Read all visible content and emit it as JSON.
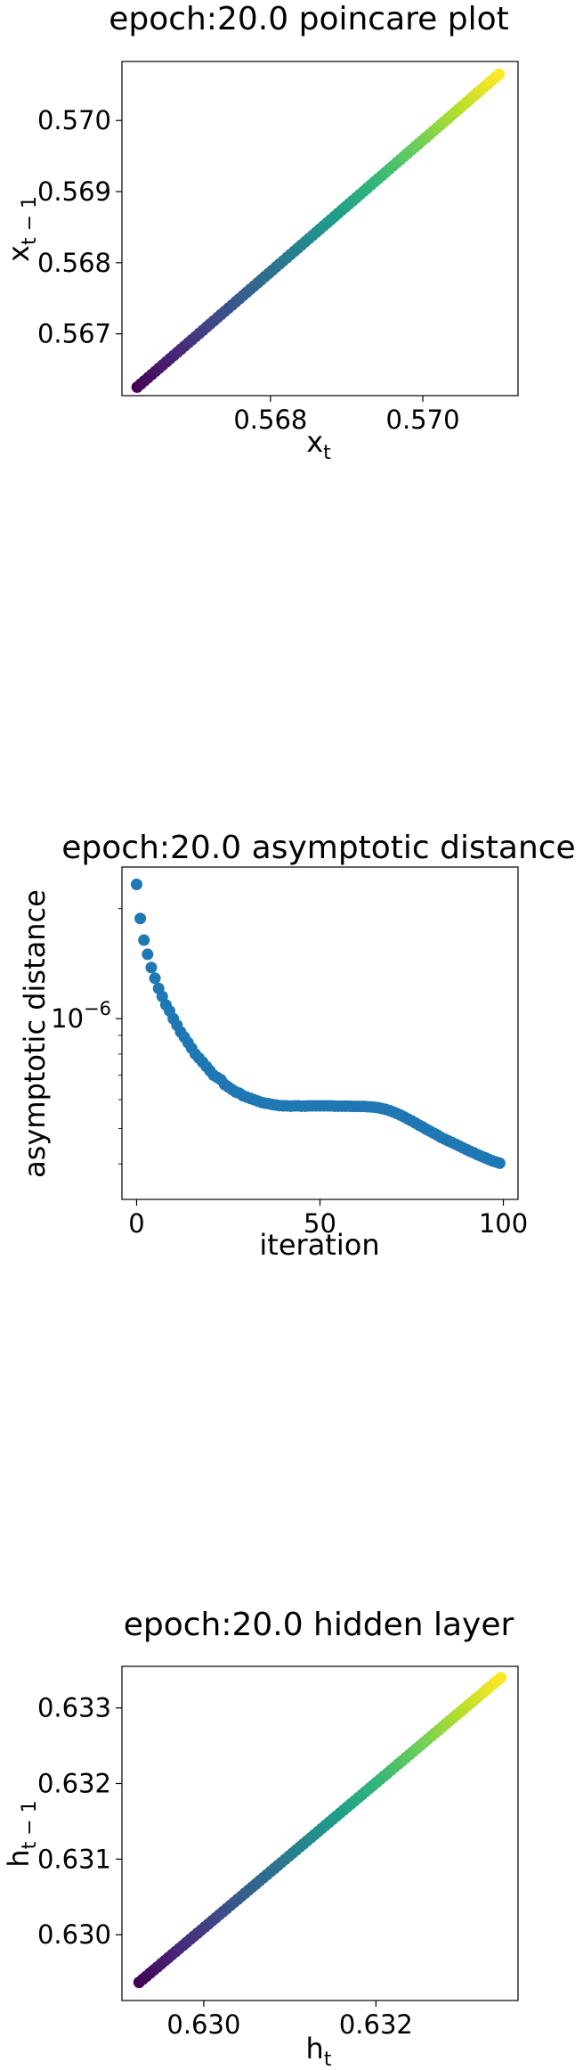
{
  "chart_data": [
    {
      "id": "poincare",
      "type": "scatter",
      "title": "epoch:20.0 poincare plot",
      "xlabel": "x",
      "xlabel_sub": "t",
      "ylabel": "x",
      "ylabel_sub": "t − 1",
      "xlim": [
        0.56605,
        0.57125
      ],
      "ylim": [
        0.56613,
        0.57083
      ],
      "xticks": [
        0.568,
        0.57
      ],
      "xtick_labels": [
        "0.568",
        "0.570"
      ],
      "yticks": [
        0.567,
        0.568,
        0.569,
        0.57
      ],
      "ytick_labels": [
        "0.567",
        "0.568",
        "0.569",
        "0.570"
      ],
      "colormap": "viridis",
      "grid": false,
      "series": [
        {
          "x_start": 0.56625,
          "x_end": 0.571,
          "y_start": 0.56625,
          "y_end": 0.57065,
          "n_points": 100
        }
      ]
    },
    {
      "id": "asymptotic",
      "type": "scatter",
      "title": "epoch:20.0 asymptotic distance",
      "xlabel": "iteration",
      "ylabel": "asymptotic distance",
      "xlim": [
        -4,
        104
      ],
      "yscale": "log",
      "ylim": [
        3.2e-07,
        2.6e-06
      ],
      "xticks": [
        0,
        50,
        100
      ],
      "xtick_labels": [
        "0",
        "50",
        "100"
      ],
      "ytick_major": 1e-06,
      "ytick_major_label_base": "10",
      "ytick_major_label_exp": "−6",
      "color": "#1f77b4",
      "grid": false,
      "series": [
        {
          "iteration": [
            0,
            1,
            2,
            3,
            4,
            5,
            6,
            7,
            8,
            9,
            10,
            11,
            12,
            13,
            14,
            15,
            16,
            17,
            18,
            19,
            20,
            21,
            22,
            23,
            24,
            25,
            26,
            27,
            28,
            29,
            30,
            31,
            32,
            33,
            34,
            35,
            36,
            37,
            38,
            39,
            40,
            41,
            42,
            43,
            44,
            45,
            46,
            47,
            48,
            49,
            50,
            51,
            52,
            53,
            54,
            55,
            56,
            57,
            58,
            59,
            60,
            61,
            62,
            63,
            64,
            65,
            66,
            67,
            68,
            69,
            70,
            71,
            72,
            73,
            74,
            75,
            76,
            77,
            78,
            79,
            80,
            81,
            82,
            83,
            84,
            85,
            86,
            87,
            88,
            89,
            90,
            91,
            92,
            93,
            94,
            95,
            96,
            97,
            98,
            99
          ],
          "distance": [
            2.33e-06,
            1.88e-06,
            1.64e-06,
            1.5e-06,
            1.38e-06,
            1.29e-06,
            1.21e-06,
            1.15e-06,
            1.09e-06,
            1.05e-06,
            1e-06,
            9.6e-07,
            9.2e-07,
            8.9e-07,
            8.6e-07,
            8.3e-07,
            8e-07,
            7.8e-07,
            7.6e-07,
            7.4e-07,
            7.2e-07,
            7e-07,
            6.9e-07,
            6.8e-07,
            6.6e-07,
            6.5e-07,
            6.4e-07,
            6.3e-07,
            6.25e-07,
            6.15e-07,
            6.1e-07,
            6.05e-07,
            6e-07,
            5.95e-07,
            5.9e-07,
            5.87e-07,
            5.85e-07,
            5.82e-07,
            5.8e-07,
            5.78e-07,
            5.77e-07,
            5.77e-07,
            5.76e-07,
            5.77e-07,
            5.77e-07,
            5.76e-07,
            5.76e-07,
            5.77e-07,
            5.77e-07,
            5.77e-07,
            5.77e-07,
            5.77e-07,
            5.77e-07,
            5.77e-07,
            5.76e-07,
            5.76e-07,
            5.76e-07,
            5.76e-07,
            5.76e-07,
            5.75e-07,
            5.75e-07,
            5.75e-07,
            5.75e-07,
            5.74e-07,
            5.73e-07,
            5.72e-07,
            5.7e-07,
            5.67e-07,
            5.64e-07,
            5.6e-07,
            5.55e-07,
            5.5e-07,
            5.44e-07,
            5.38e-07,
            5.31e-07,
            5.25e-07,
            5.18e-07,
            5.11e-07,
            5.05e-07,
            4.98e-07,
            4.92e-07,
            4.86e-07,
            4.8e-07,
            4.73e-07,
            4.68e-07,
            4.63e-07,
            4.58e-07,
            4.53e-07,
            4.48e-07,
            4.43e-07,
            4.38e-07,
            4.33e-07,
            4.29e-07,
            4.24e-07,
            4.2e-07,
            4.16e-07,
            4.12e-07,
            4.08e-07,
            4.05e-07,
            4.02e-07
          ]
        }
      ]
    },
    {
      "id": "hidden",
      "type": "scatter",
      "title": "epoch:20.0 hidden layer",
      "xlabel": "h",
      "xlabel_sub": "t",
      "ylabel": "h",
      "ylabel_sub": "t − 1",
      "xlim": [
        0.62905,
        0.63365
      ],
      "ylim": [
        0.62913,
        0.63355
      ],
      "xticks": [
        0.63,
        0.632
      ],
      "xtick_labels": [
        "0.630",
        "0.632"
      ],
      "yticks": [
        0.63,
        0.631,
        0.632,
        0.633
      ],
      "ytick_labels": [
        "0.630",
        "0.631",
        "0.632",
        "0.633"
      ],
      "colormap": "viridis",
      "grid": false,
      "series": [
        {
          "x_start": 0.62925,
          "x_end": 0.63345,
          "y_start": 0.62937,
          "y_end": 0.6334,
          "n_points": 100
        }
      ]
    }
  ]
}
